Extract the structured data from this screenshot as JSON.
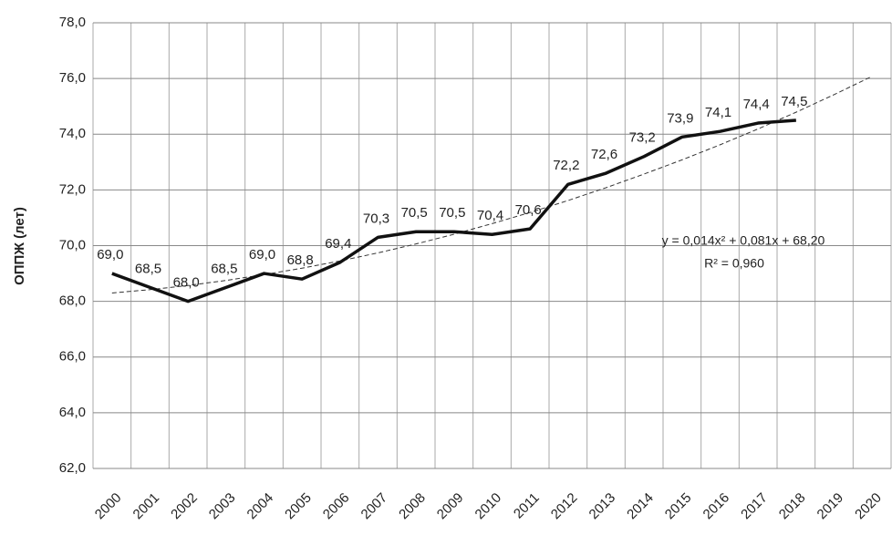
{
  "chart_data": {
    "type": "line",
    "y_label": "ОППЖ (лет)",
    "categories": [
      "2000",
      "2001",
      "2002",
      "2003",
      "2004",
      "2005",
      "2006",
      "2007",
      "2008",
      "2009",
      "2010",
      "2011",
      "2012",
      "2013",
      "2014",
      "2015",
      "2016",
      "2017",
      "2018",
      "2019",
      "2020"
    ],
    "series": [
      {
        "color": "#111111",
        "values": [
          69.0,
          68.5,
          68.0,
          68.5,
          69.0,
          68.8,
          69.4,
          70.3,
          70.5,
          70.5,
          70.4,
          70.6,
          72.2,
          72.6,
          73.2,
          73.9,
          74.1,
          74.4,
          74.5,
          null,
          null
        ],
        "value_labels": [
          "69,0",
          "68,5",
          "68,0",
          "68,5",
          "69,0",
          "68,8",
          "69,4",
          "70,3",
          "70,5",
          "70,5",
          "70,4",
          "70,6",
          "72,2",
          "72,6",
          "73,2",
          "73,9",
          "74,1",
          "74,4",
          "74,5",
          null,
          null
        ]
      }
    ],
    "trendline": {
      "color": "#333333",
      "equation": "y = 0,014x² + 0,081x + 68,20",
      "r2": "R² = 0,960",
      "values": [
        68.3,
        68.42,
        68.57,
        68.75,
        68.96,
        69.19,
        69.45,
        69.74,
        70.06,
        70.41,
        70.79,
        71.19,
        71.62,
        72.08,
        72.57,
        73.08,
        73.62,
        74.19,
        74.79,
        75.42,
        76.08
      ]
    },
    "ylim": [
      62,
      78
    ],
    "yticks": [
      {
        "value": 62,
        "label": "62,0"
      },
      {
        "value": 64,
        "label": "64,0"
      },
      {
        "value": 66,
        "label": "66,0"
      },
      {
        "value": 68,
        "label": "68,0"
      },
      {
        "value": 70,
        "label": "70,0"
      },
      {
        "value": 72,
        "label": "72,0"
      },
      {
        "value": 74,
        "label": "74,0"
      },
      {
        "value": 76,
        "label": "76,0"
      },
      {
        "value": 78,
        "label": "78,0"
      }
    ],
    "grid": true
  }
}
